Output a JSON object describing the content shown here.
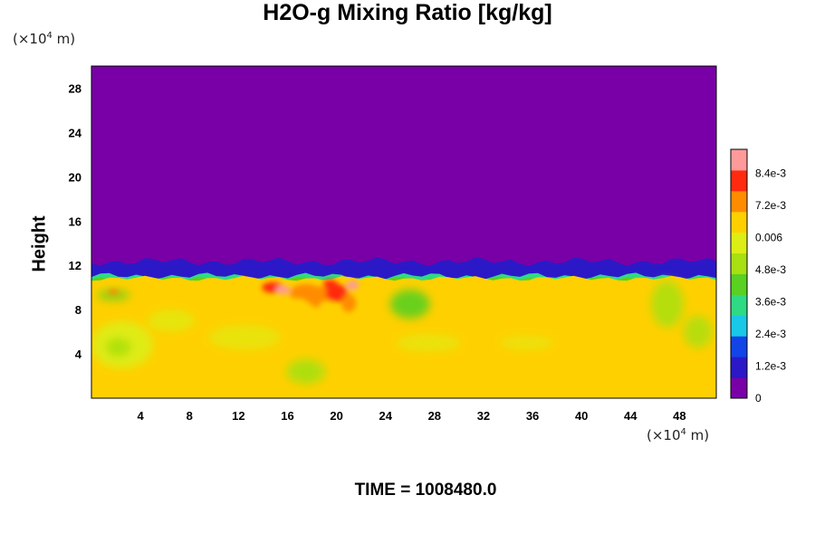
{
  "chart_data": {
    "type": "heatmap",
    "title": "H2O-g Mixing Ratio [kg/kg]",
    "ylabel": "Height",
    "xlabel": "",
    "x_unit": {
      "prefix": "(×10",
      "exp": "4",
      "suffix": " m)"
    },
    "y_unit": {
      "prefix": "(×10",
      "exp": "4",
      "suffix": " m)"
    },
    "xlim": [
      0,
      51
    ],
    "ylim": [
      0,
      30
    ],
    "x_ticks": [
      4,
      8,
      12,
      16,
      20,
      24,
      28,
      32,
      36,
      40,
      44,
      48
    ],
    "y_ticks": [
      4,
      8,
      12,
      16,
      20,
      24,
      28
    ],
    "colorbar": {
      "min": 0,
      "max": 0.0093,
      "tick_values": [
        0,
        0.0012,
        0.0024,
        0.0036,
        0.0048,
        0.006,
        0.0072,
        0.0084
      ],
      "tick_labels": [
        "0",
        "1.2e-3",
        "2.4e-3",
        "3.6e-3",
        "4.8e-3",
        "0.006",
        "7.2e-3",
        "8.4e-3"
      ],
      "colors": [
        "#7800a6",
        "#2b19c8",
        "#1244e8",
        "#19c8e6",
        "#2fda84",
        "#5ad020",
        "#a8e012",
        "#dcee14",
        "#ffd000",
        "#ff8c00",
        "#ff2a10",
        "#ff9a9a"
      ]
    },
    "field_description": {
      "dry_layer_value": 0,
      "dry_layer_above_height": 12.5,
      "moist_layer_value": 0.0063,
      "transition_band_height": [
        10,
        13
      ],
      "maxima_region_x": [
        14,
        22
      ],
      "maxima_region_height": [
        7,
        11
      ]
    },
    "grid": false,
    "legend": "colorbar-right"
  },
  "footer": {
    "time_label": "TIME = 1008480.0"
  }
}
